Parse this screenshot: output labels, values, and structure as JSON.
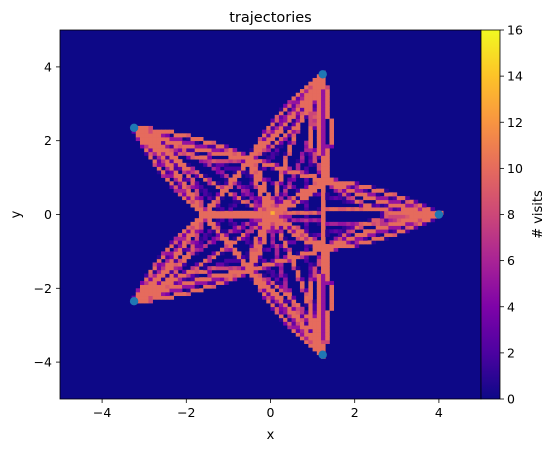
{
  "chart_data": {
    "type": "heatmap",
    "title": "trajectories",
    "xlabel": "x",
    "ylabel": "y",
    "xlim": [
      -5,
      5
    ],
    "ylim": [
      -5,
      5
    ],
    "x_ticks": [
      -4,
      -2,
      0,
      2,
      4
    ],
    "y_ticks": [
      -4,
      -2,
      0,
      2,
      4
    ],
    "tick_text": {
      "-4": "−4",
      "-2": "−2",
      "0": "0",
      "2": "2",
      "4": "4"
    },
    "colorbar": {
      "label": "# visits",
      "min": 0,
      "max": 16,
      "ticks": [
        0,
        2,
        4,
        6,
        8,
        10,
        12,
        14,
        16
      ],
      "colormap": "plasma"
    },
    "grid": false,
    "bins": 100,
    "background_color": "#0d0887",
    "highlight_cell": {
      "x": 0,
      "y": 0,
      "visits": 13
    },
    "trajectory": {
      "description": "five-pointed star path through the origin",
      "points": 5,
      "outer_radius": 4.0,
      "inner_radius": 1.6
    },
    "start_points": {
      "color": "#1f77b4",
      "points": [
        {
          "x": 4.0,
          "y": 0.0
        },
        {
          "x": 1.24,
          "y": 3.8
        },
        {
          "x": -3.24,
          "y": 2.35
        },
        {
          "x": -3.24,
          "y": -2.35
        },
        {
          "x": 1.24,
          "y": -3.8
        }
      ]
    }
  }
}
